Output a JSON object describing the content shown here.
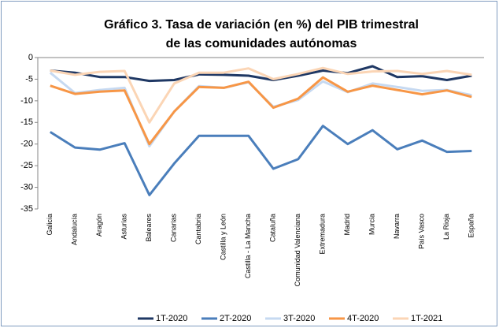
{
  "chart_data": {
    "type": "line",
    "title": [
      "Gráfico 3. Tasa de variación (en %) del PIB trimestral",
      "de las comunidades autónomas"
    ],
    "categories": [
      "Galicia",
      "Andalucía",
      "Aragón",
      "Asturias",
      "Baleares",
      "Canarias",
      "Cantabria",
      "Castilla y León",
      "Castilla - La Mancha",
      "Cataluña",
      "Comunidad Valenciana",
      "Extremadura",
      "Madrid",
      "Murcia",
      "Navarra",
      "País Vasco",
      "La Rioja",
      "España"
    ],
    "series": [
      {
        "name": "1T-2020",
        "color": "#1f3864",
        "values": [
          -3,
          -3.5,
          -4.5,
          -4.5,
          -5.4,
          -5.2,
          -3.9,
          -4.0,
          -4.2,
          -5.2,
          -4.2,
          -3.0,
          -3.6,
          -2.0,
          -4.5,
          -4.3,
          -5.2,
          -4.2
        ]
      },
      {
        "name": "2T-2020",
        "color": "#4a7ebb",
        "values": [
          -17.2,
          -20.8,
          -21.3,
          -19.8,
          -31.8,
          -24.5,
          -18.1,
          -18.1,
          -18.1,
          -25.7,
          -23.5,
          -15.8,
          -20.0,
          -16.8,
          -21.2,
          -19.2,
          -21.8,
          -21.6
        ]
      },
      {
        "name": "3T-2020",
        "color": "#c6d9f1",
        "values": [
          -3.5,
          -8.2,
          -7.5,
          -7.0,
          -20.5,
          -12.5,
          -6.6,
          -7.0,
          -5.7,
          -11.4,
          -9.8,
          -5.5,
          -8.0,
          -6.0,
          -6.8,
          -7.7,
          -7.5,
          -8.7
        ]
      },
      {
        "name": "4T-2020",
        "color": "#f79646",
        "values": [
          -6.5,
          -8.4,
          -7.9,
          -7.6,
          -20.0,
          -12.5,
          -6.8,
          -7.0,
          -5.6,
          -11.6,
          -9.5,
          -4.6,
          -7.9,
          -6.5,
          -7.5,
          -8.5,
          -7.6,
          -9.1
        ]
      },
      {
        "name": "1T-2021",
        "color": "#fbd5b5",
        "values": [
          -3.0,
          -4.0,
          -3.3,
          -3.1,
          -15.0,
          -6.0,
          -3.5,
          -3.5,
          -2.5,
          -5.0,
          -3.8,
          -2.4,
          -3.8,
          -3.2,
          -3.1,
          -3.8,
          -3.1,
          -4.0
        ]
      }
    ],
    "ylim": [
      -35,
      0
    ],
    "yticks": [
      0,
      -5,
      -10,
      -15,
      -20,
      -25,
      -30,
      -35
    ],
    "grid": false,
    "legend": "bottom"
  }
}
